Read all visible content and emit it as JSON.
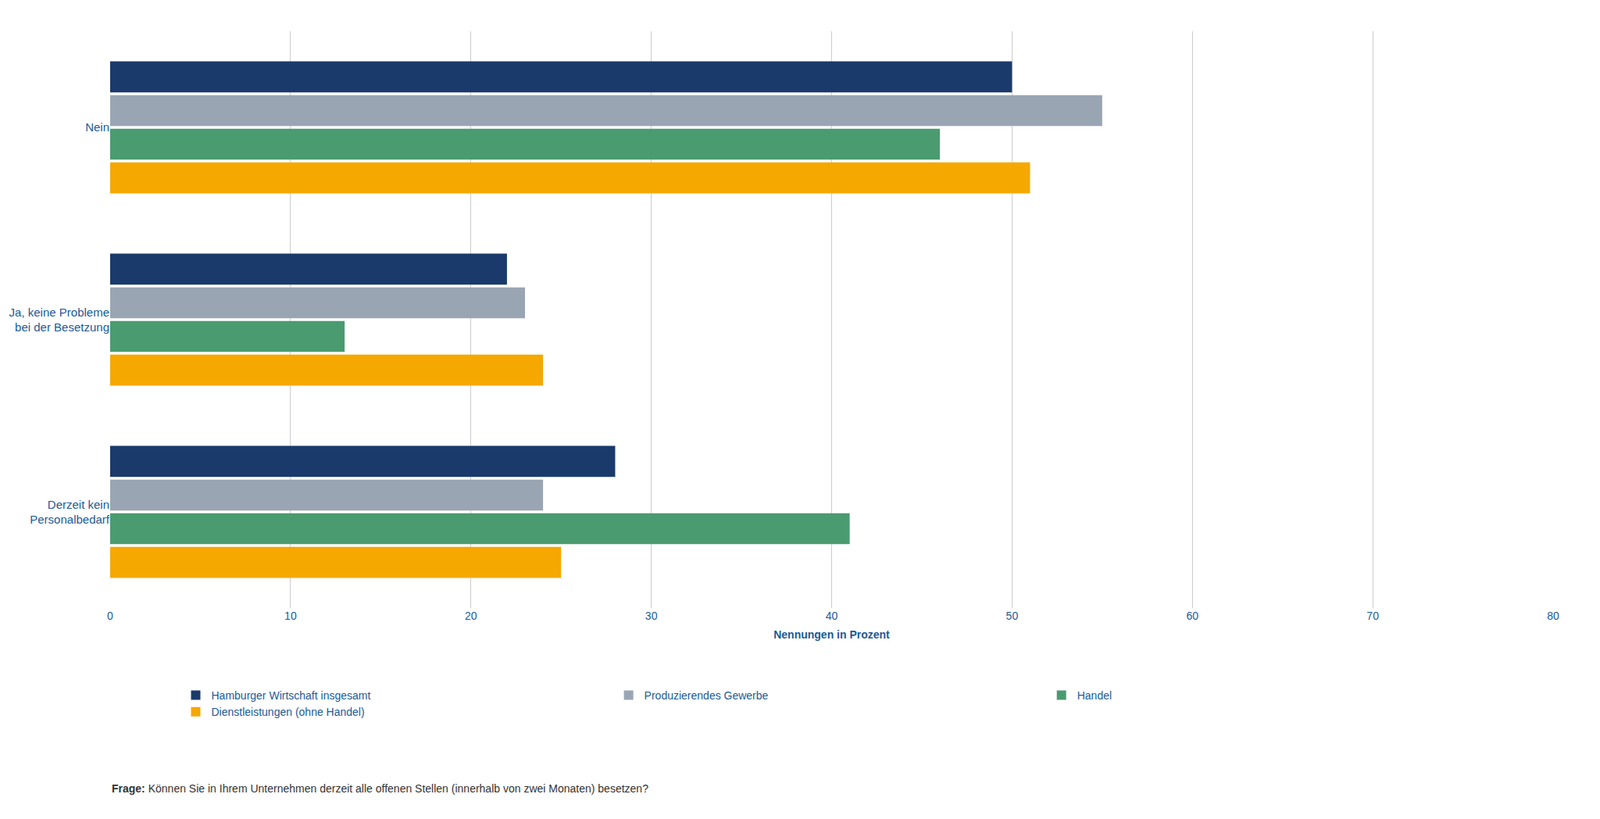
{
  "chart_data": {
    "type": "bar",
    "orientation": "horizontal",
    "categories": [
      "Nein",
      "Ja, keine Probleme\nbei der Besetzung",
      "Derzeit kein\nPersonalbedarf"
    ],
    "series": [
      {
        "name": "Hamburger Wirtschaft insgesamt",
        "color": "#1a3a6b",
        "values": [
          50,
          22,
          28
        ]
      },
      {
        "name": "Produzierendes Gewerbe",
        "color": "#9aa5b4",
        "values": [
          55,
          23,
          24
        ]
      },
      {
        "name": "Handel",
        "color": "#4a9b6f",
        "values": [
          46,
          13,
          41
        ]
      },
      {
        "name": "Dienstleistungen (ohne Handel)",
        "color": "#f5a800",
        "values": [
          51,
          24,
          25
        ]
      }
    ],
    "xlim": [
      0,
      80
    ],
    "xticks": [
      0,
      10,
      20,
      30,
      40,
      50,
      60,
      70,
      80
    ],
    "xlabel": "Nennungen in Prozent",
    "grid": true,
    "legend": "bottom",
    "annotations": [
      "Frage:",
      " Können Sie in Ihrem Unternehmen derzeit alle offenen Stellen (innerhalb von zwei Monaten) besetzen?"
    ]
  }
}
